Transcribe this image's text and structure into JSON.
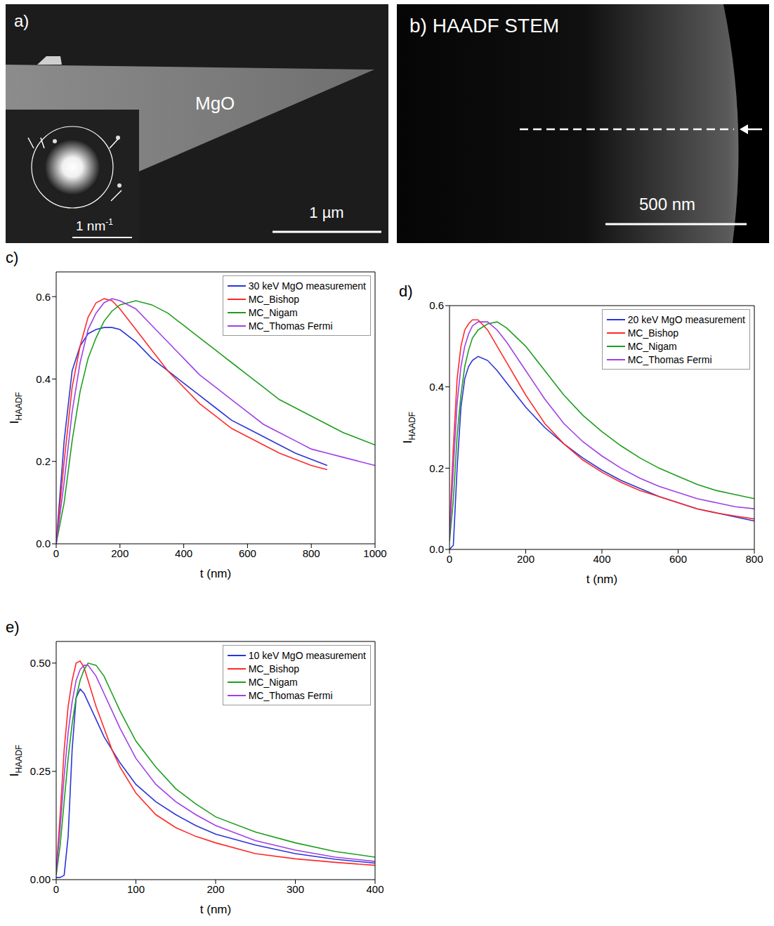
{
  "images": [
    {
      "panel": "a)",
      "label": "MgO",
      "scale_bar": "1 µm",
      "inset_scale_bar": {
        "text": "1 nm",
        "superscript": "-1"
      }
    },
    {
      "panel": "b)",
      "title": "HAADF STEM",
      "scale_bar": "500 nm"
    }
  ],
  "chart_data": [
    {
      "panel": "c)",
      "type": "line",
      "x_label": "t (nm)",
      "y_label": {
        "text": "I",
        "subscript": "HAADF"
      },
      "xlim": [
        0,
        1000
      ],
      "xticks": [
        0,
        200,
        400,
        600,
        800,
        1000
      ],
      "ylim": [
        0,
        0.66
      ],
      "yticks": [
        {
          "value": 0,
          "label": "0.0"
        },
        {
          "value": 0.2,
          "label": "0.2"
        },
        {
          "value": 0.4,
          "label": "0.4"
        },
        {
          "value": 0.6,
          "label": "0.6"
        }
      ],
      "grid": false,
      "legend": "upper right",
      "x": [
        0,
        25,
        50,
        75,
        100,
        125,
        150,
        175,
        200,
        250,
        300,
        350,
        400,
        450,
        500,
        550,
        600,
        650,
        700,
        750,
        800,
        850,
        900,
        950,
        1000
      ],
      "series": [
        {
          "name": "30 keV MgO measurement",
          "color": "#2b35d6",
          "values": [
            0,
            0.25,
            0.42,
            0.48,
            0.51,
            0.52,
            0.525,
            0.525,
            0.52,
            0.49,
            0.45,
            0.42,
            0.39,
            0.36,
            0.33,
            0.3,
            0.28,
            0.26,
            0.24,
            0.22,
            0.205,
            0.19,
            null,
            null,
            null
          ]
        },
        {
          "name": "MC_Bishop",
          "color": "#ff2a2a",
          "values": [
            0,
            0.2,
            0.38,
            0.48,
            0.55,
            0.585,
            0.595,
            0.59,
            0.57,
            0.52,
            0.47,
            0.42,
            0.38,
            0.34,
            0.31,
            0.28,
            0.26,
            0.24,
            0.22,
            0.205,
            0.19,
            0.18,
            null,
            null,
            null
          ]
        },
        {
          "name": "MC_Nigam",
          "color": "#1e9e1e",
          "values": [
            0,
            0.1,
            0.25,
            0.37,
            0.45,
            0.5,
            0.54,
            0.565,
            0.58,
            0.59,
            0.58,
            0.56,
            0.53,
            0.5,
            0.47,
            0.44,
            0.41,
            0.38,
            0.35,
            0.33,
            0.31,
            0.29,
            0.27,
            0.255,
            0.24
          ]
        },
        {
          "name": "MC_Thomas Fermi",
          "color": "#a040e6",
          "values": [
            0,
            0.15,
            0.32,
            0.44,
            0.52,
            0.56,
            0.585,
            0.595,
            0.59,
            0.57,
            0.53,
            0.49,
            0.45,
            0.41,
            0.38,
            0.35,
            0.32,
            0.29,
            0.27,
            0.25,
            0.23,
            0.22,
            0.21,
            0.2,
            0.19
          ]
        }
      ]
    },
    {
      "panel": "d)",
      "type": "line",
      "x_label": "t (nm)",
      "y_label": {
        "text": "I",
        "subscript": "HAADF"
      },
      "xlim": [
        0,
        800
      ],
      "xticks": [
        0,
        200,
        400,
        600,
        800
      ],
      "ylim": [
        0,
        0.6
      ],
      "yticks": [
        {
          "value": 0,
          "label": "0.0"
        },
        {
          "value": 0.2,
          "label": "0.2"
        },
        {
          "value": 0.4,
          "label": "0.4"
        },
        {
          "value": 0.6,
          "label": "0.6"
        }
      ],
      "grid": false,
      "legend": "upper right",
      "x": [
        0,
        10,
        20,
        30,
        40,
        50,
        60,
        75,
        100,
        125,
        150,
        200,
        250,
        300,
        350,
        400,
        450,
        500,
        550,
        600,
        650,
        700,
        750,
        800
      ],
      "series": [
        {
          "name": "20 keV MgO measurement",
          "color": "#2b35d6",
          "values": [
            0,
            0.01,
            0.2,
            0.35,
            0.42,
            0.45,
            0.465,
            0.475,
            0.465,
            0.44,
            0.41,
            0.35,
            0.3,
            0.26,
            0.225,
            0.195,
            0.17,
            0.15,
            0.13,
            0.115,
            0.1,
            0.09,
            0.08,
            0.07
          ]
        },
        {
          "name": "MC_Bishop",
          "color": "#ff2a2a",
          "values": [
            0.05,
            0.25,
            0.42,
            0.5,
            0.54,
            0.555,
            0.565,
            0.565,
            0.54,
            0.5,
            0.46,
            0.38,
            0.31,
            0.26,
            0.22,
            0.19,
            0.165,
            0.145,
            0.13,
            0.115,
            0.1,
            0.09,
            0.082,
            0.075
          ]
        },
        {
          "name": "MC_Nigam",
          "color": "#1e9e1e",
          "values": [
            0.02,
            0.12,
            0.28,
            0.38,
            0.45,
            0.49,
            0.52,
            0.54,
            0.555,
            0.56,
            0.545,
            0.5,
            0.44,
            0.38,
            0.33,
            0.29,
            0.255,
            0.225,
            0.2,
            0.18,
            0.16,
            0.145,
            0.135,
            0.125
          ]
        },
        {
          "name": "MC_Thomas Fermi",
          "color": "#a040e6",
          "values": [
            0.03,
            0.2,
            0.36,
            0.45,
            0.5,
            0.53,
            0.55,
            0.56,
            0.56,
            0.54,
            0.51,
            0.44,
            0.37,
            0.31,
            0.265,
            0.23,
            0.2,
            0.175,
            0.155,
            0.14,
            0.125,
            0.115,
            0.105,
            0.1
          ]
        }
      ]
    },
    {
      "panel": "e)",
      "type": "line",
      "x_label": "t (nm)",
      "y_label": {
        "text": "I",
        "subscript": "HAADF"
      },
      "xlim": [
        0,
        400
      ],
      "xticks": [
        0,
        100,
        200,
        300,
        400
      ],
      "ylim": [
        0,
        0.55
      ],
      "yticks": [
        {
          "value": 0,
          "label": "0.00"
        },
        {
          "value": 0.25,
          "label": "0.25"
        },
        {
          "value": 0.5,
          "label": "0.50"
        }
      ],
      "grid": false,
      "legend": "upper right",
      "x": [
        0,
        5,
        10,
        15,
        20,
        25,
        30,
        35,
        40,
        50,
        60,
        70,
        80,
        100,
        125,
        150,
        175,
        200,
        250,
        300,
        350,
        400
      ],
      "series": [
        {
          "name": "10 keV MgO measurement",
          "color": "#2b35d6",
          "values": [
            0.005,
            0.005,
            0.01,
            0.1,
            0.3,
            0.42,
            0.44,
            0.43,
            0.41,
            0.37,
            0.33,
            0.3,
            0.27,
            0.22,
            0.18,
            0.15,
            0.125,
            0.105,
            0.08,
            0.06,
            0.047,
            0.038
          ]
        },
        {
          "name": "MC_Bishop",
          "color": "#ff2a2a",
          "values": [
            0.02,
            0.15,
            0.3,
            0.4,
            0.46,
            0.5,
            0.505,
            0.49,
            0.46,
            0.4,
            0.35,
            0.3,
            0.26,
            0.2,
            0.15,
            0.12,
            0.1,
            0.085,
            0.06,
            0.048,
            0.04,
            0.033
          ]
        },
        {
          "name": "MC_Nigam",
          "color": "#1e9e1e",
          "values": [
            0.01,
            0.08,
            0.18,
            0.28,
            0.36,
            0.42,
            0.46,
            0.485,
            0.5,
            0.495,
            0.47,
            0.43,
            0.39,
            0.32,
            0.26,
            0.21,
            0.175,
            0.145,
            0.11,
            0.085,
            0.065,
            0.052
          ]
        },
        {
          "name": "MC_Thomas Fermi",
          "color": "#a040e6",
          "values": [
            0.015,
            0.12,
            0.24,
            0.34,
            0.41,
            0.46,
            0.485,
            0.495,
            0.495,
            0.47,
            0.43,
            0.39,
            0.35,
            0.28,
            0.22,
            0.18,
            0.15,
            0.125,
            0.09,
            0.068,
            0.052,
            0.042
          ]
        }
      ]
    }
  ]
}
